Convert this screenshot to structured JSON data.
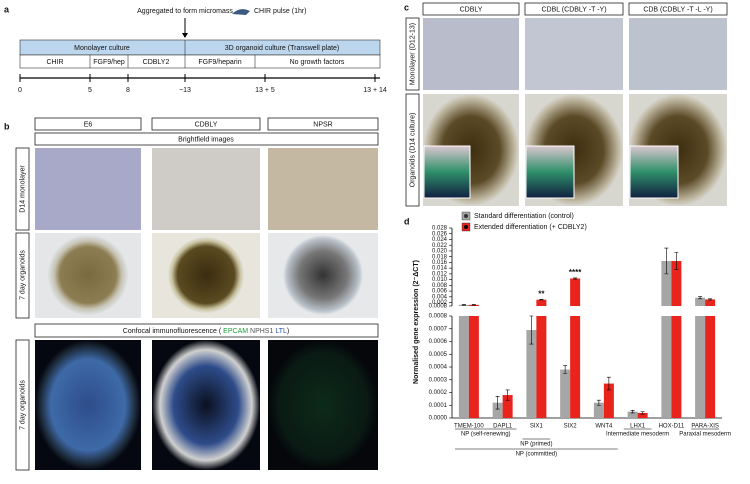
{
  "panel_a": {
    "letter": "a",
    "aggregate": "Aggregated to form micromass",
    "pulse": "CHIR pulse (1hr)",
    "phases": [
      "Monolayer culture",
      "3D organoid culture (Transwell plate)"
    ],
    "steps": [
      "CHIR",
      "FGF9/hep",
      "CDBLY2",
      "FGF9/heparin",
      "No growth factors"
    ],
    "timeline": [
      "0",
      "5",
      "8",
      "~13",
      "13 + 5",
      "13 + 14"
    ]
  },
  "panel_b": {
    "letter": "b",
    "columns": [
      "E6",
      "CDBLY",
      "NPSR"
    ],
    "brightfield": "Brightfield images",
    "rows": [
      "D14 monolayer",
      "7 day organoids",
      "7 day organoids"
    ],
    "confocal_open": "Confocal immunofluorescence (",
    "markers": [
      "EPCAM",
      "NPHS1",
      "LTL"
    ],
    "confocal_close": ")"
  },
  "panel_c": {
    "letter": "c",
    "columns": [
      "CDBLY",
      "CDBL (CDBLY -T -Y)",
      "CDB (CDBLY -T -L -Y)"
    ],
    "rows": [
      "Monolayer (D12-13)",
      "Organoids (D14 culture)"
    ]
  },
  "chart_data": {
    "type": "broken_bar",
    "letter": "d",
    "y_label": "Normalised gene expression (2⁻ΔCT)",
    "categories": [
      "TMEM-100",
      "DAPL1",
      "SIX1",
      "SIX2",
      "WNT4",
      "LHX1",
      "HOX-D11",
      "PARA-XIS"
    ],
    "series": [
      {
        "name": "Standard differentiation (control)",
        "color": "#a6a6a6",
        "marker": "#333333",
        "values": [
          0.0012,
          0.00012,
          0.00069,
          0.00038,
          0.00012,
          5e-05,
          0.0165,
          0.0037
        ],
        "errors": [
          0.0001,
          5e-05,
          0.00011,
          3e-05,
          2e-05,
          1e-05,
          0.0045,
          0.0004
        ],
        "significance": [
          null,
          null,
          null,
          null,
          null,
          null,
          null,
          null
        ]
      },
      {
        "name": "Extended differentiation (+ CDBLY2)",
        "color": "#e8241d",
        "marker": "#e8241d",
        "values": [
          0.0012,
          0.00018,
          0.003,
          0.0104,
          0.00027,
          4e-05,
          0.0165,
          0.0031
        ],
        "errors": [
          0.0001,
          4e-05,
          0.0001,
          0.0002,
          5e-05,
          1e-05,
          0.003,
          0.0002
        ],
        "significance": [
          null,
          null,
          "**",
          "****",
          null,
          null,
          null,
          null
        ]
      }
    ],
    "ylim_lower": [
      0,
      0.0008
    ],
    "yticks_lower": [
      {
        "value": 0,
        "label": "0.0000"
      },
      0.0001,
      0.0002,
      0.0003,
      0.0004,
      0.0005,
      0.0006,
      0.0007,
      0.0008
    ],
    "ylim_upper": [
      0.0008,
      0.028
    ],
    "yticks_upper": [
      0.0008,
      0.002,
      0.004,
      0.006,
      0.008,
      {
        "value": 0.01,
        "label": "0.010"
      },
      0.012,
      0.014,
      0.016,
      0.018,
      {
        "value": 0.02,
        "label": "0.020"
      },
      0.022,
      0.024,
      0.026,
      0.028
    ],
    "groups": [
      "NP (self-renewing)",
      "NP (primed)",
      "NP (committed)",
      "Intermediate mesoderm",
      "Paraxial mesoderm"
    ]
  }
}
